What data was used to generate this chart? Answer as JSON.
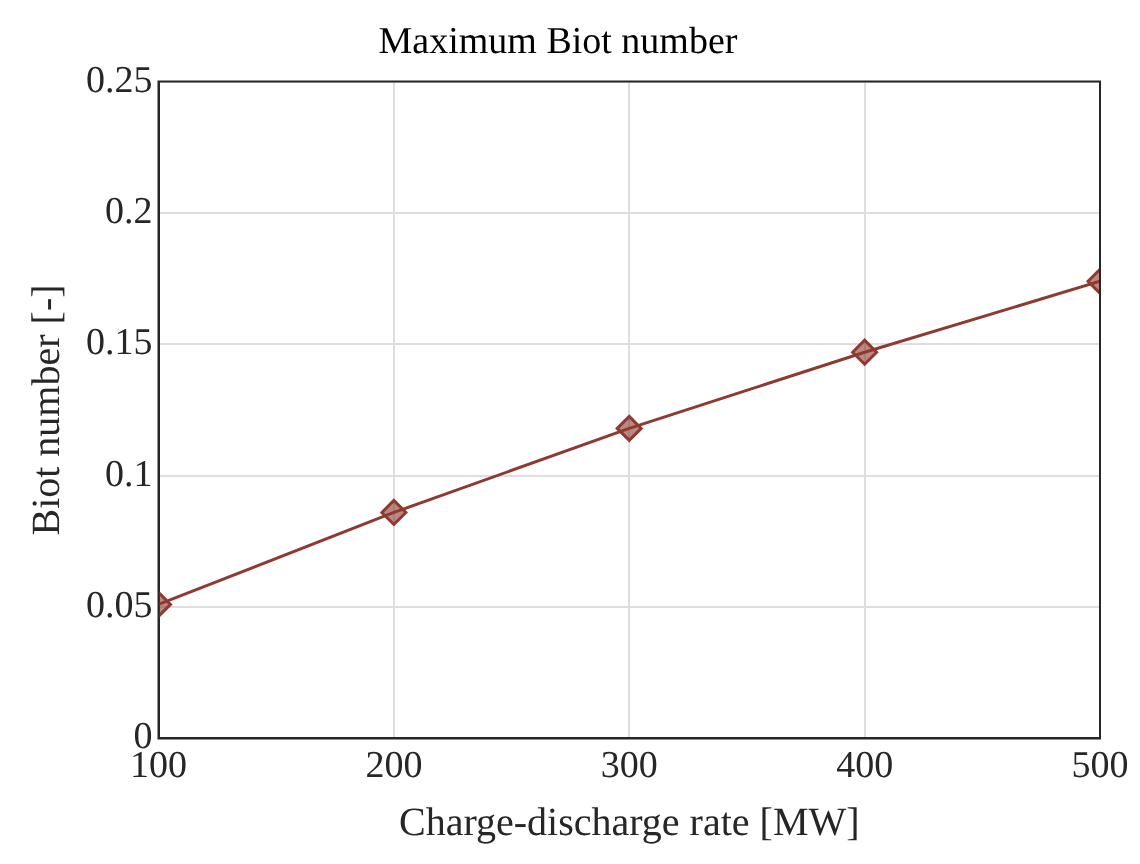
{
  "chart_data": {
    "type": "line",
    "title": "Maximum Biot number",
    "xlabel": "Charge-discharge rate [MW]",
    "ylabel": "Biot number [-]",
    "x": [
      100,
      200,
      300,
      400,
      500
    ],
    "series": [
      {
        "color": "#8e3a30",
        "values": [
          0.051,
          0.086,
          0.118,
          0.147,
          0.174
        ]
      }
    ],
    "xlim": [
      100,
      500
    ],
    "xticks": [
      100,
      200,
      300,
      400,
      500
    ],
    "ylim": [
      0,
      0.25
    ],
    "yticks": [
      0,
      0.05,
      0.1,
      0.15,
      0.2,
      0.25
    ],
    "grid": true,
    "legend": false,
    "marker": "diamond",
    "line_style": "solid"
  }
}
